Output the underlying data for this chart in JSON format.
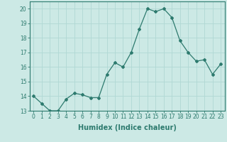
{
  "x": [
    0,
    1,
    2,
    3,
    4,
    5,
    6,
    7,
    8,
    9,
    10,
    11,
    12,
    13,
    14,
    15,
    16,
    17,
    18,
    19,
    20,
    21,
    22,
    23
  ],
  "y": [
    14,
    13.5,
    13,
    13,
    13.8,
    14.2,
    14.1,
    13.9,
    13.9,
    15.5,
    16.3,
    16.0,
    17.0,
    18.6,
    20.0,
    19.8,
    20.0,
    19.4,
    17.8,
    17.0,
    16.4,
    16.5,
    15.5,
    16.2
  ],
  "line_color": "#2d7a6e",
  "marker": "D",
  "marker_size": 2.0,
  "bg_color": "#cce9e5",
  "grid_color": "#b0d8d4",
  "xlabel": "Humidex (Indice chaleur)",
  "ylabel": "",
  "title": "",
  "ylim": [
    13,
    20.5
  ],
  "xlim": [
    -0.5,
    23.5
  ],
  "yticks": [
    13,
    14,
    15,
    16,
    17,
    18,
    19,
    20
  ],
  "xticks": [
    0,
    1,
    2,
    3,
    4,
    5,
    6,
    7,
    8,
    9,
    10,
    11,
    12,
    13,
    14,
    15,
    16,
    17,
    18,
    19,
    20,
    21,
    22,
    23
  ],
  "tick_label_fontsize": 5.5,
  "xlabel_fontsize": 7.0,
  "tick_color": "#2d7a6e",
  "label_color": "#2d7a6e",
  "linewidth": 0.9
}
